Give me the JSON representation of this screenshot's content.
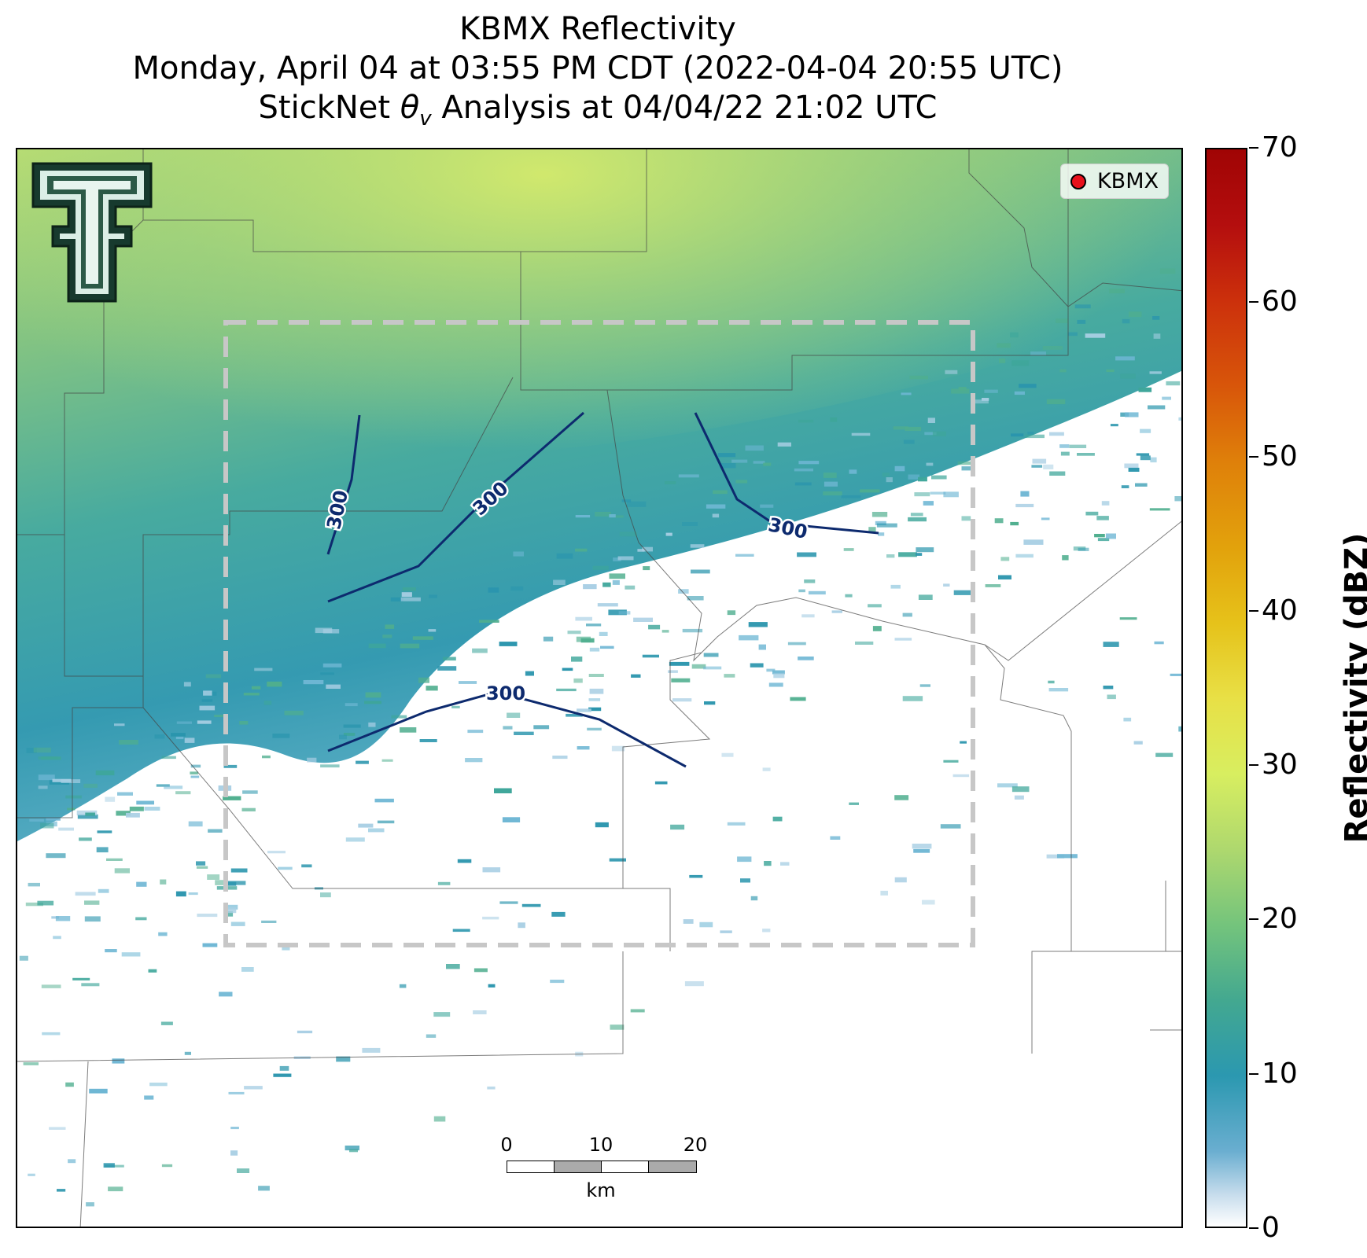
{
  "title": {
    "line1": "KBMX Reflectivity",
    "line2": "Monday, April 04 at 03:55 PM CDT (2022-04-04 20:55 UTC)",
    "line3": "StickNet θv Analysis at 04/04/22 21:02 UTC"
  },
  "legend": {
    "label": "KBMX",
    "marker_color": "#e8101a"
  },
  "colorbar": {
    "title": "Reflectivity (dBZ)",
    "min": 0,
    "max": 70,
    "ticks": [
      "0",
      "10",
      "20",
      "30",
      "40",
      "50",
      "60",
      "70"
    ]
  },
  "contours": {
    "label": "300",
    "color": "#0d2a6e"
  },
  "scale_bar": {
    "ticks": [
      "0",
      "10",
      "20"
    ],
    "unit": "km"
  },
  "logo": {
    "name": "texas-tech-double-t-logo"
  }
}
